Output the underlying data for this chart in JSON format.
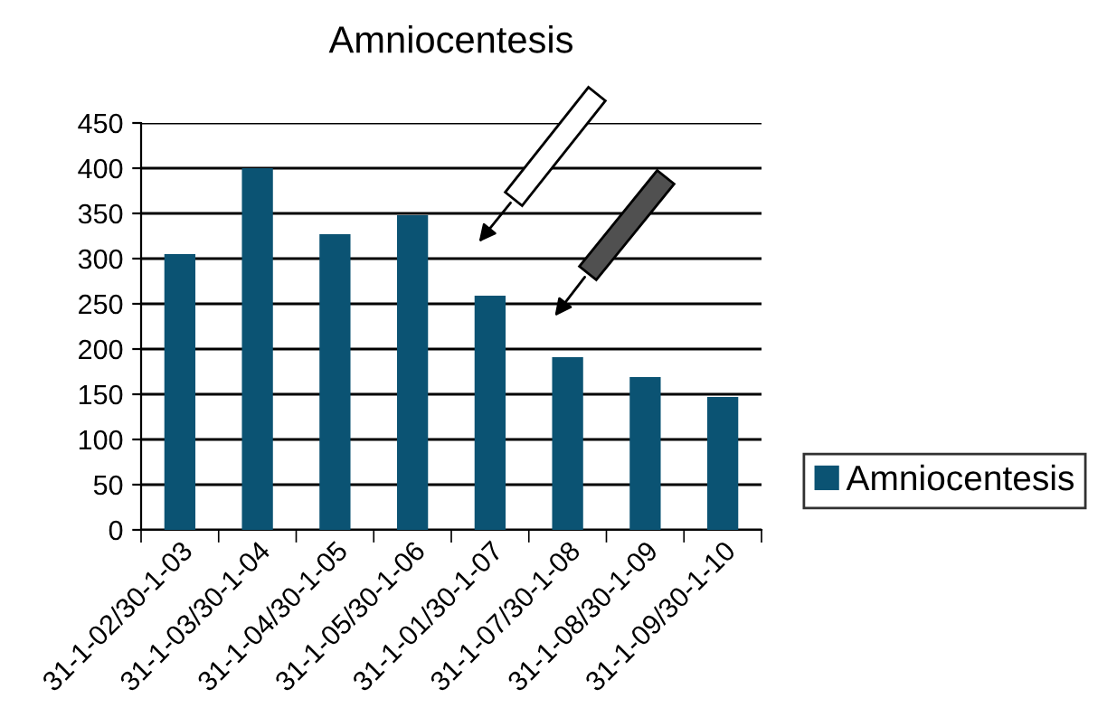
{
  "chart_data": {
    "type": "bar",
    "title": "Amniocentesis",
    "categories": [
      "31-1-02/30-1-03",
      "31-1-03/30-1-04",
      "31-1-04/30-1-05",
      "31-1-05/30-1-06",
      "31-1-01/30-1-07",
      "31-1-07/30-1-08",
      "31-1-08/30-1-09",
      "31-1-09/30-1-10"
    ],
    "series": [
      {
        "name": "Amniocentesis",
        "color": "#0b5373",
        "values": [
          305,
          400,
          327,
          348,
          259,
          191,
          169,
          147
        ]
      }
    ],
    "ylim": [
      0,
      450
    ],
    "yticks": [
      0,
      50,
      100,
      150,
      200,
      250,
      300,
      350,
      400,
      450
    ],
    "grid": "y",
    "legend": "right"
  }
}
